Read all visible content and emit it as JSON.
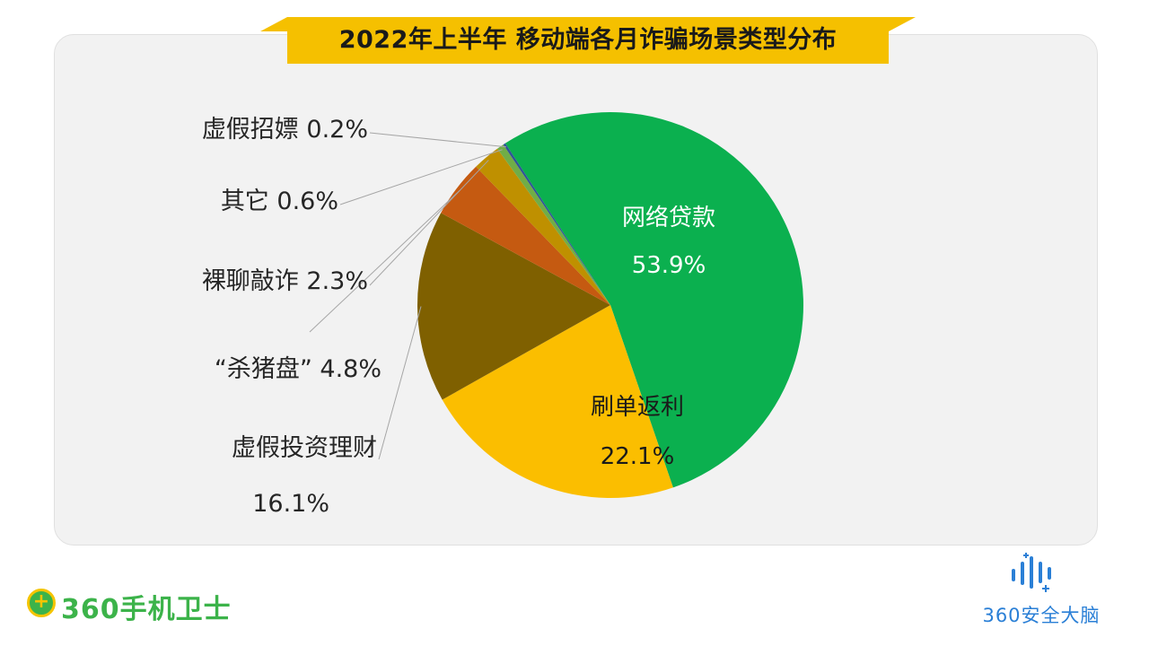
{
  "title": "2022年上半年 移动端各月诈骗场景类型分布",
  "colors": {
    "banner": "#f5c000",
    "panel": "#f2f2f2",
    "leader_line": "#a6a6a6"
  },
  "chart_data": {
    "type": "pie",
    "title": "2022年上半年 移动端各月诈骗场景类型分布",
    "slices": [
      {
        "label": "网络贷款",
        "value": 53.9,
        "value_text": "53.9%",
        "color": "#0bb04f",
        "label_position": "inside"
      },
      {
        "label": "刷单返利",
        "value": 22.1,
        "value_text": "22.1%",
        "color": "#fbbe00",
        "label_position": "inside"
      },
      {
        "label": "虚假投资理财",
        "value": 16.1,
        "value_text": "16.1%",
        "color": "#7f6000",
        "label_position": "outside"
      },
      {
        "label": "“杀猪盘”",
        "value": 4.8,
        "value_text": "4.8%",
        "color": "#c55a11",
        "label_position": "outside"
      },
      {
        "label": "裸聊敲诈",
        "value": 2.3,
        "value_text": "2.3%",
        "color": "#bf9000",
        "label_position": "outside"
      },
      {
        "label": "其它",
        "value": 0.6,
        "value_text": "0.6%",
        "color": "#70ad47",
        "label_position": "outside"
      },
      {
        "label": "虚假招嫖",
        "value": 0.2,
        "value_text": "0.2%",
        "color": "#2f5597",
        "label_position": "outside"
      }
    ]
  },
  "logos": {
    "left_brand": "360手机卫士",
    "left_badge": "+",
    "right_brand": "360安全大脑"
  }
}
